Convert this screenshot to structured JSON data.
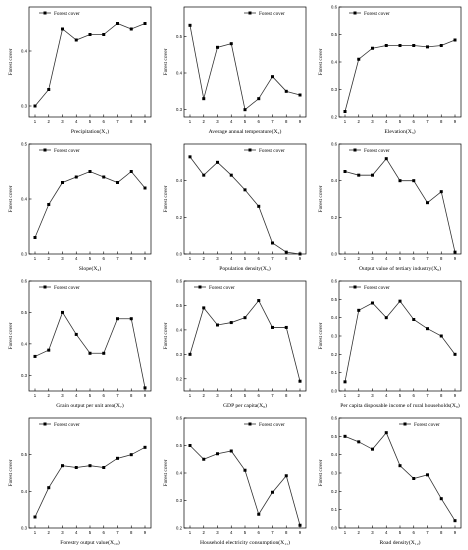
{
  "chart_data": [
    {
      "type": "line",
      "xlabel": "Precipitation(X₁)",
      "ylabel": "Forest cover",
      "legend": "Forest cover",
      "legend_placement": "top-left",
      "x": [
        1,
        2,
        3,
        4,
        5,
        6,
        7,
        8,
        9
      ],
      "values": [
        0.3,
        0.33,
        0.44,
        0.42,
        0.43,
        0.43,
        0.45,
        0.44,
        0.45
      ],
      "ylim": [
        0.28,
        0.48
      ],
      "yticks": [
        "0.3",
        "0.4"
      ],
      "ytick_values": [
        0.3,
        0.4
      ],
      "xticks": [
        "1",
        "2",
        "3",
        "4",
        "5",
        "6",
        "7",
        "8",
        "9"
      ],
      "grid": false
    },
    {
      "type": "line",
      "xlabel": "Average annual temperature(X₂)",
      "ylabel": "Forest cover",
      "legend": "Forest cover",
      "legend_placement": "top-right",
      "x": [
        1,
        2,
        3,
        4,
        5,
        6,
        7,
        8,
        9
      ],
      "values": [
        0.53,
        0.33,
        0.47,
        0.48,
        0.3,
        0.33,
        0.39,
        0.35,
        0.34
      ],
      "ylim": [
        0.28,
        0.58
      ],
      "yticks": [
        "0.3",
        "0.4",
        "0.5"
      ],
      "ytick_values": [
        0.3,
        0.4,
        0.5
      ],
      "xticks": [
        "1",
        "2",
        "3",
        "4",
        "5",
        "6",
        "7",
        "8",
        "9"
      ],
      "grid": false
    },
    {
      "type": "line",
      "xlabel": "Elevation(X₃)",
      "ylabel": "Forest cover",
      "legend": "Forest cover",
      "legend_placement": "top-left",
      "x": [
        1,
        2,
        3,
        4,
        5,
        6,
        7,
        8,
        9
      ],
      "values": [
        0.22,
        0.41,
        0.45,
        0.46,
        0.46,
        0.46,
        0.455,
        0.46,
        0.48
      ],
      "ylim": [
        0.2,
        0.6
      ],
      "yticks": [
        "0.2",
        "0.3",
        "0.4",
        "0.5",
        "0.6"
      ],
      "ytick_values": [
        0.2,
        0.3,
        0.4,
        0.5,
        0.6
      ],
      "xticks": [
        "1",
        "2",
        "3",
        "4",
        "5",
        "6",
        "7",
        "8",
        "9"
      ],
      "grid": false
    },
    {
      "type": "line",
      "xlabel": "Slope(X₄)",
      "ylabel": "Forest cover",
      "legend": "Forest cover",
      "legend_placement": "top-left",
      "x": [
        1,
        2,
        3,
        4,
        5,
        6,
        7,
        8,
        9
      ],
      "values": [
        0.33,
        0.39,
        0.43,
        0.44,
        0.45,
        0.44,
        0.43,
        0.45,
        0.42
      ],
      "ylim": [
        0.3,
        0.5
      ],
      "yticks": [
        "0.3",
        "0.4",
        "0.5"
      ],
      "ytick_values": [
        0.3,
        0.4,
        0.5
      ],
      "xticks": [
        "1",
        "2",
        "3",
        "4",
        "5",
        "6",
        "7",
        "8",
        "9"
      ],
      "grid": false
    },
    {
      "type": "line",
      "xlabel": "Population density(X₅)",
      "ylabel": "Forest cover",
      "legend": "Forest cover",
      "legend_placement": "top-right",
      "x": [
        1,
        2,
        3,
        4,
        5,
        6,
        7,
        8,
        9
      ],
      "values": [
        0.53,
        0.43,
        0.5,
        0.43,
        0.35,
        0.26,
        0.06,
        0.01,
        0.0
      ],
      "ylim": [
        0.0,
        0.6
      ],
      "yticks": [
        "0.0",
        "0.2",
        "0.4"
      ],
      "ytick_values": [
        0.0,
        0.2,
        0.4
      ],
      "xticks": [
        "1",
        "2",
        "3",
        "4",
        "5",
        "6",
        "7",
        "8",
        "9"
      ],
      "grid": false
    },
    {
      "type": "line",
      "xlabel": "Output value of tertiary industry(X₆)",
      "ylabel": "Forest cover",
      "legend": "Forest cover",
      "legend_placement": "top-left",
      "x": [
        1,
        2,
        3,
        4,
        5,
        6,
        7,
        8,
        9
      ],
      "values": [
        0.45,
        0.43,
        0.43,
        0.52,
        0.4,
        0.4,
        0.28,
        0.34,
        0.01
      ],
      "ylim": [
        0.0,
        0.6
      ],
      "yticks": [
        "0.0",
        "0.2",
        "0.4",
        "0.6"
      ],
      "ytick_values": [
        0.0,
        0.2,
        0.4,
        0.6
      ],
      "xticks": [
        "1",
        "2",
        "3",
        "4",
        "5",
        "6",
        "7",
        "8",
        "9"
      ],
      "grid": false
    },
    {
      "type": "line",
      "xlabel": "Grain output per unit area(X₇)",
      "ylabel": "Forest cover",
      "legend": "Forest cover",
      "legend_placement": "top-left",
      "x": [
        1,
        2,
        3,
        4,
        5,
        6,
        7,
        8,
        9
      ],
      "values": [
        0.36,
        0.38,
        0.5,
        0.43,
        0.37,
        0.37,
        0.48,
        0.48,
        0.26
      ],
      "ylim": [
        0.25,
        0.6
      ],
      "yticks": [
        "0.3",
        "0.4",
        "0.5",
        "0.6"
      ],
      "ytick_values": [
        0.3,
        0.4,
        0.5,
        0.6
      ],
      "xticks": [
        "1",
        "2",
        "3",
        "4",
        "5",
        "6",
        "7",
        "8",
        "9"
      ],
      "grid": false
    },
    {
      "type": "line",
      "xlabel": "GDP per capita(X₈)",
      "ylabel": "Forest cover",
      "legend": "Forest cover",
      "legend_placement": "top-left",
      "x": [
        1,
        2,
        3,
        4,
        5,
        6,
        7,
        8,
        9
      ],
      "values": [
        0.3,
        0.49,
        0.42,
        0.43,
        0.45,
        0.52,
        0.41,
        0.41,
        0.19
      ],
      "ylim": [
        0.15,
        0.6
      ],
      "yticks": [
        "0.2",
        "0.3",
        "0.4",
        "0.5",
        "0.6"
      ],
      "ytick_values": [
        0.2,
        0.3,
        0.4,
        0.5,
        0.6
      ],
      "xticks": [
        "1",
        "2",
        "3",
        "4",
        "5",
        "6",
        "7",
        "8",
        "9"
      ],
      "grid": false
    },
    {
      "type": "line",
      "xlabel": "Per capita disposable income of rural households(X₉)",
      "ylabel": "Forest cover",
      "legend": "Forest cover",
      "legend_placement": "top-left",
      "x": [
        1,
        2,
        3,
        4,
        5,
        6,
        7,
        8,
        9
      ],
      "values": [
        0.05,
        0.44,
        0.48,
        0.4,
        0.49,
        0.39,
        0.34,
        0.3,
        0.2
      ],
      "ylim": [
        0.0,
        0.6
      ],
      "yticks": [
        "0.0",
        "0.1",
        "0.2",
        "0.3",
        "0.4",
        "0.5",
        "0.6"
      ],
      "ytick_values": [
        0.0,
        0.1,
        0.2,
        0.3,
        0.4,
        0.5,
        0.6
      ],
      "xticks": [
        "1",
        "2",
        "3",
        "4",
        "5",
        "6",
        "7",
        "8",
        "9"
      ],
      "grid": false
    },
    {
      "type": "line",
      "xlabel": "Forestry output value(X₁₀)",
      "ylabel": "Forest cover",
      "legend": "Forest cover",
      "legend_placement": "top-left",
      "x": [
        1,
        2,
        3,
        4,
        5,
        6,
        7,
        8,
        9
      ],
      "values": [
        0.33,
        0.41,
        0.47,
        0.465,
        0.47,
        0.465,
        0.49,
        0.5,
        0.52
      ],
      "ylim": [
        0.3,
        0.6
      ],
      "yticks": [
        "0.3",
        "0.4",
        "0.5"
      ],
      "ytick_values": [
        0.3,
        0.4,
        0.5
      ],
      "xticks": [
        "1",
        "2",
        "3",
        "4",
        "5",
        "6",
        "7",
        "8",
        "9"
      ],
      "grid": false
    },
    {
      "type": "line",
      "xlabel": "Household electricity consumption(X₁₁)",
      "ylabel": "Forest cover",
      "legend": "Forest cover",
      "legend_placement": "top-right",
      "x": [
        1,
        2,
        3,
        4,
        5,
        6,
        7,
        8,
        9
      ],
      "values": [
        0.5,
        0.45,
        0.47,
        0.48,
        0.41,
        0.25,
        0.33,
        0.39,
        0.21
      ],
      "ylim": [
        0.2,
        0.6
      ],
      "yticks": [
        "0.2",
        "0.3",
        "0.4",
        "0.5",
        "0.6"
      ],
      "ytick_values": [
        0.2,
        0.3,
        0.4,
        0.5,
        0.6
      ],
      "xticks": [
        "1",
        "2",
        "3",
        "4",
        "5",
        "6",
        "7",
        "8",
        "9"
      ],
      "grid": false
    },
    {
      "type": "line",
      "xlabel": "Road density(X₁₂)",
      "ylabel": "Forest cover",
      "legend": "Forest cover",
      "legend_placement": "top-right",
      "x": [
        1,
        2,
        3,
        4,
        5,
        6,
        7,
        8,
        9
      ],
      "values": [
        0.5,
        0.47,
        0.43,
        0.52,
        0.34,
        0.27,
        0.29,
        0.16,
        0.04
      ],
      "ylim": [
        0.0,
        0.6
      ],
      "yticks": [
        "0.0",
        "0.1",
        "0.2",
        "0.3",
        "0.4",
        "0.5",
        "0.6"
      ],
      "ytick_values": [
        0.0,
        0.1,
        0.2,
        0.3,
        0.4,
        0.5,
        0.6
      ],
      "xticks": [
        "1",
        "2",
        "3",
        "4",
        "5",
        "6",
        "7",
        "8",
        "9"
      ],
      "grid": false
    }
  ]
}
